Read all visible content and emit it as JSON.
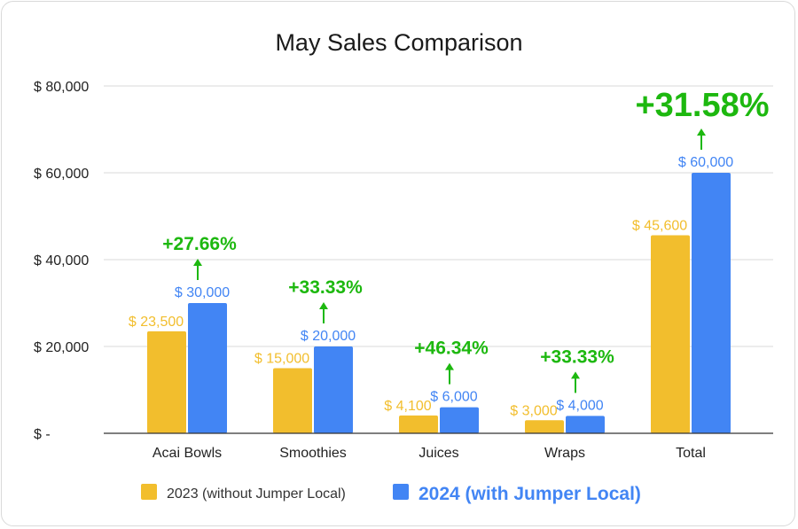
{
  "colors": {
    "series_2023": "#F2BE2D",
    "series_2024": "#4285F4",
    "growth": "#1DB80F",
    "grid": "#d9d9d9",
    "axis": "#333333"
  },
  "chart_data": {
    "type": "bar",
    "title": "May Sales Comparison",
    "categories": [
      "Acai Bowls",
      "Smoothies",
      "Juices",
      "Wraps",
      "Total"
    ],
    "series": [
      {
        "name": "2023 (without Jumper Local)",
        "values": [
          23500,
          15000,
          4100,
          3000,
          45600
        ],
        "labels": [
          "$ 23,500",
          "$ 15,000",
          "$ 4,100",
          "$ 3,000",
          "$ 45,600"
        ]
      },
      {
        "name": "2024 (with Jumper Local)",
        "values": [
          30000,
          20000,
          6000,
          4000,
          60000
        ],
        "labels": [
          "$ 30,000",
          "$ 20,000",
          "$ 6,000",
          "$ 4,000",
          "$ 60,000"
        ]
      }
    ],
    "growth_labels": [
      "+27.66%",
      "+33.33%",
      "+46.34%",
      "+33.33%",
      "+31.58%"
    ],
    "ylim": [
      0,
      80000
    ],
    "yticks": [
      {
        "value": 0,
        "label": "$ -"
      },
      {
        "value": 20000,
        "label": "$ 20,000"
      },
      {
        "value": 40000,
        "label": "$ 40,000"
      },
      {
        "value": 60000,
        "label": "$ 60,000"
      },
      {
        "value": 80000,
        "label": "$ 80,000"
      }
    ],
    "grid": true,
    "legend_position": "bottom"
  }
}
